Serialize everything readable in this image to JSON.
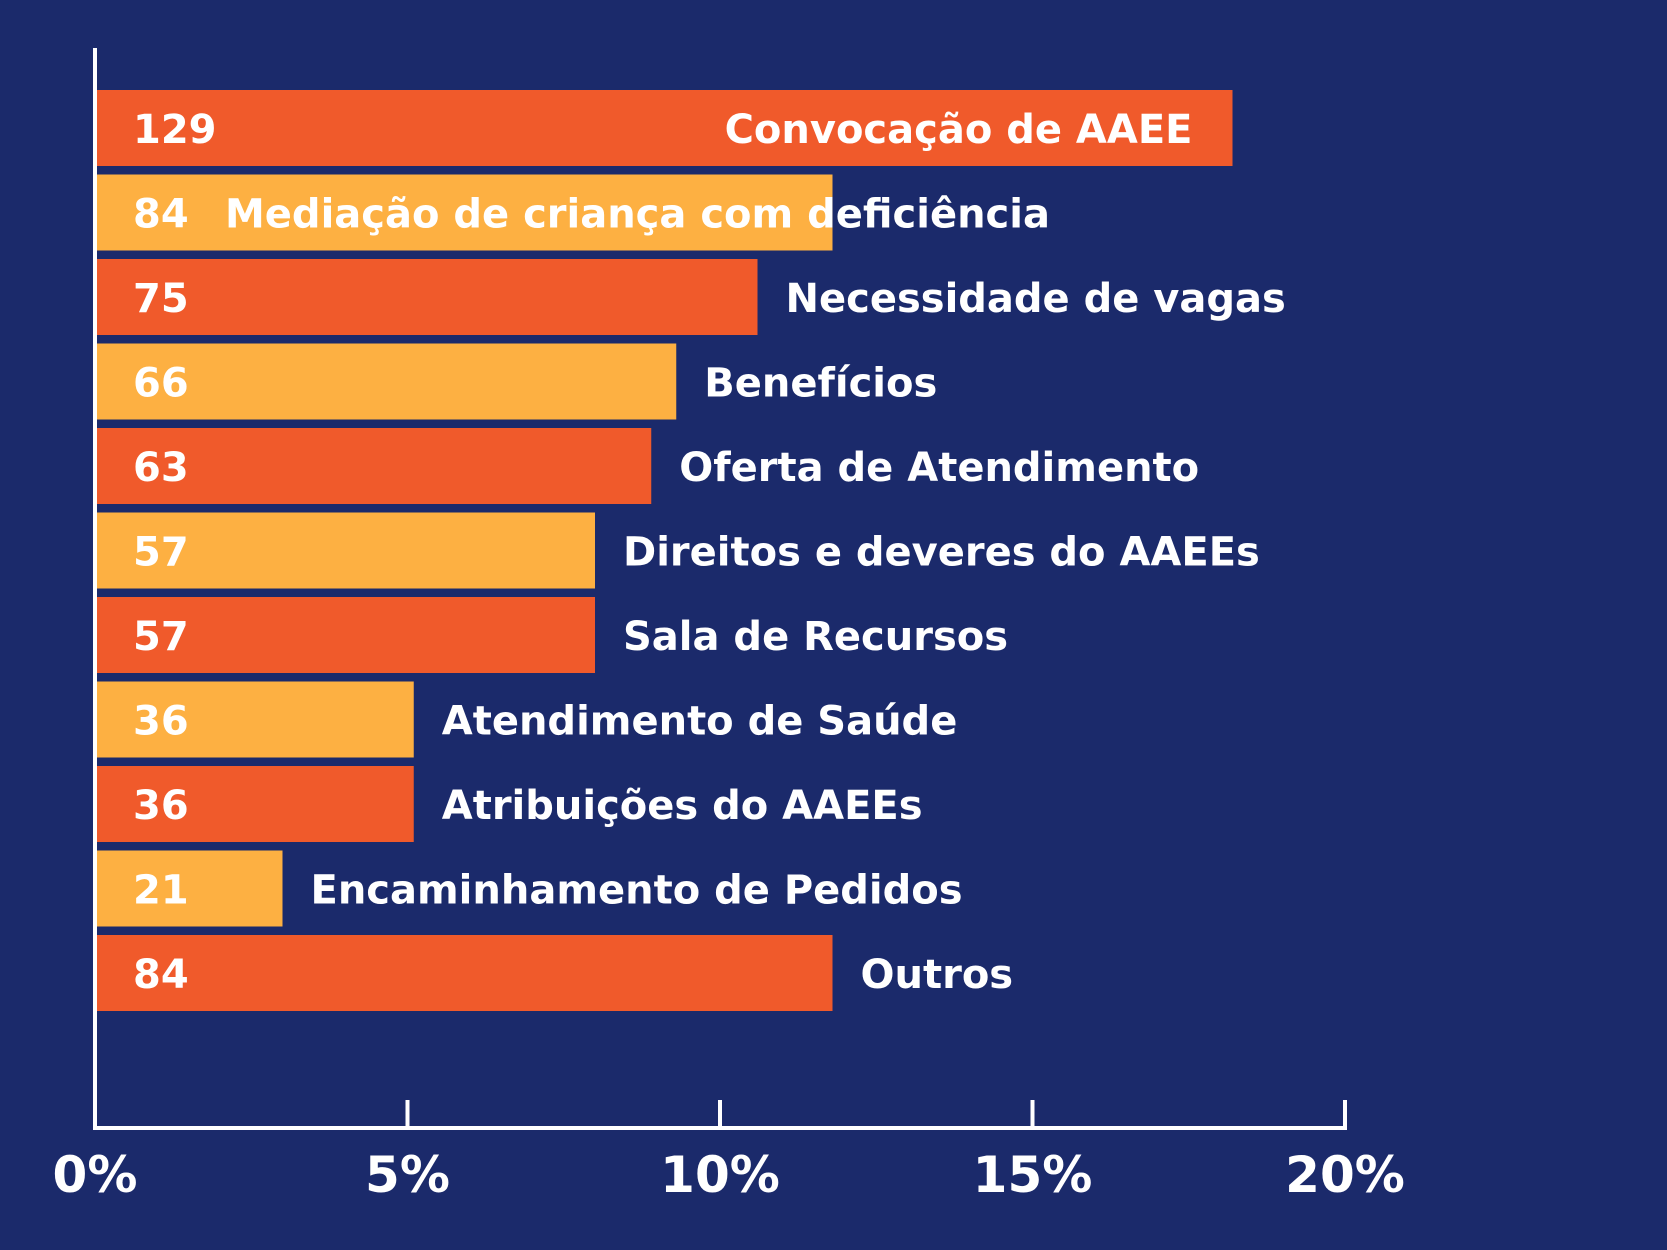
{
  "colors": {
    "background": "#1b2a6b",
    "bar_primary": "#f05a2b",
    "bar_secondary": "#fdb042",
    "axis": "#ffffff",
    "text": "#ffffff"
  },
  "chart_data": {
    "type": "bar",
    "orientation": "horizontal",
    "categories": [
      "Convocação de AAEE",
      "Mediação de criança com deficiência",
      "Necessidade de vagas",
      "Benefícios",
      "Oferta de Atendimento",
      "Direitos e deveres do AAEEs",
      "Sala de Recursos",
      "Atendimento de Saúde",
      "Atribuições do AAEEs",
      "Encaminhamento de Pedidos",
      "Outros"
    ],
    "values": [
      129,
      84,
      75,
      66,
      63,
      57,
      57,
      36,
      36,
      21,
      84
    ],
    "percentages": [
      18.2,
      11.8,
      10.6,
      9.3,
      8.9,
      8.0,
      8.0,
      5.1,
      5.1,
      3.0,
      11.8
    ],
    "bar_colors": [
      "#f05a2b",
      "#fdb042",
      "#f05a2b",
      "#fdb042",
      "#f05a2b",
      "#fdb042",
      "#f05a2b",
      "#fdb042",
      "#f05a2b",
      "#fdb042",
      "#f05a2b"
    ],
    "xlim": [
      0,
      20
    ],
    "xticks": [
      "0%",
      "5%",
      "10%",
      "15%",
      "20%"
    ],
    "xtick_values": [
      0,
      5,
      10,
      15,
      20
    ],
    "title": "",
    "xlabel": "",
    "ylabel": "",
    "grid": false,
    "legend": "none"
  }
}
